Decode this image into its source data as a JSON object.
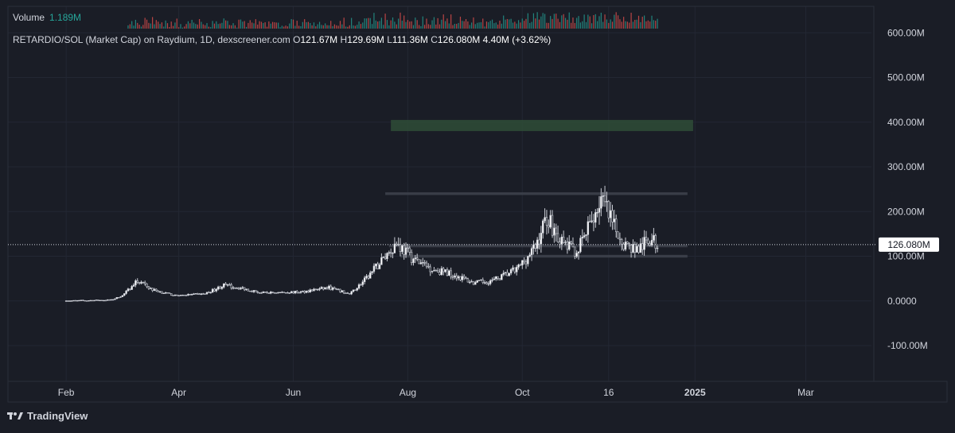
{
  "volume": {
    "label": "Volume",
    "value": "1.189M"
  },
  "legend": {
    "symbol": "RETARDIO/SOL (Market Cap) on Raydium, 1D, dexscreener.com",
    "open_k": "O",
    "open": "121.67M",
    "high_k": "H",
    "high": "129.69M",
    "low_k": "L",
    "low": "111.36M",
    "close_k": "C",
    "close": "126.080M",
    "change": "4.40M (+3.62%)"
  },
  "brand": "TradingView",
  "colors": {
    "background": "#1a1d26",
    "candle": "#d1d4dc",
    "zone_green": "#2e4a36",
    "vol_up": "#26a69a",
    "vol_down": "#ef5350"
  },
  "chart_data": {
    "type": "candlestick",
    "title": "RETARDIO/SOL (Market Cap) on Raydium, 1D, dexscreener.com",
    "y_unit": "Market Cap",
    "ylim": [
      -180,
      620
    ],
    "yticks": [
      -100,
      0,
      100,
      200,
      300,
      400,
      500,
      600
    ],
    "ytick_labels": [
      "-100.00M",
      "0.0000",
      "100.00M",
      "200.00M",
      "300.00M",
      "400.00M",
      "500.00M",
      "600.00M"
    ],
    "xlim": [
      "2024-01-01",
      "2025-04-05"
    ],
    "xticks": [
      {
        "date": "2024-02-01",
        "label": "Feb"
      },
      {
        "date": "2024-04-01",
        "label": "Apr"
      },
      {
        "date": "2024-06-01",
        "label": "Jun"
      },
      {
        "date": "2024-08-01",
        "label": "Aug"
      },
      {
        "date": "2024-10-01",
        "label": "Oct"
      },
      {
        "date": "2024-11-16",
        "label": "16"
      },
      {
        "date": "2025-01-01",
        "label": "2025"
      },
      {
        "date": "2025-03-01",
        "label": "Mar"
      }
    ],
    "last_price": 126.08,
    "last_price_label": "126.080M",
    "trend_points": [
      {
        "date": "2024-02-01",
        "value": 0
      },
      {
        "date": "2024-02-25",
        "value": 2
      },
      {
        "date": "2024-03-02",
        "value": 12
      },
      {
        "date": "2024-03-10",
        "value": 45
      },
      {
        "date": "2024-03-18",
        "value": 25
      },
      {
        "date": "2024-03-30",
        "value": 12
      },
      {
        "date": "2024-04-15",
        "value": 16
      },
      {
        "date": "2024-04-25",
        "value": 35
      },
      {
        "date": "2024-05-05",
        "value": 28
      },
      {
        "date": "2024-05-15",
        "value": 18
      },
      {
        "date": "2024-06-05",
        "value": 20
      },
      {
        "date": "2024-06-20",
        "value": 30
      },
      {
        "date": "2024-07-01",
        "value": 15
      },
      {
        "date": "2024-07-10",
        "value": 50
      },
      {
        "date": "2024-07-20",
        "value": 100
      },
      {
        "date": "2024-07-26",
        "value": 130
      },
      {
        "date": "2024-08-05",
        "value": 90
      },
      {
        "date": "2024-08-15",
        "value": 70
      },
      {
        "date": "2024-08-25",
        "value": 60
      },
      {
        "date": "2024-09-05",
        "value": 40
      },
      {
        "date": "2024-09-15",
        "value": 45
      },
      {
        "date": "2024-09-28",
        "value": 70
      },
      {
        "date": "2024-10-08",
        "value": 120
      },
      {
        "date": "2024-10-14",
        "value": 190
      },
      {
        "date": "2024-10-22",
        "value": 130
      },
      {
        "date": "2024-10-30",
        "value": 110
      },
      {
        "date": "2024-11-05",
        "value": 160
      },
      {
        "date": "2024-11-12",
        "value": 230
      },
      {
        "date": "2024-11-18",
        "value": 170
      },
      {
        "date": "2024-11-25",
        "value": 125
      },
      {
        "date": "2024-12-02",
        "value": 115
      },
      {
        "date": "2024-12-08",
        "value": 140
      },
      {
        "date": "2024-12-12",
        "value": 126
      }
    ],
    "zones": [
      {
        "name": "green-zone",
        "from": "2024-07-23",
        "to": "2024-12-31",
        "low": 380,
        "high": 405,
        "color": "#2e4a36"
      },
      {
        "name": "resistance-band",
        "from": "2024-07-20",
        "to": "2024-12-28",
        "low": 237,
        "high": 243,
        "color": "#3d414b"
      },
      {
        "name": "range-top-band",
        "from": "2024-07-22",
        "to": "2024-12-28",
        "low": 120,
        "high": 126,
        "color": "#3d414b"
      },
      {
        "name": "range-bottom-band",
        "from": "2024-07-28",
        "to": "2024-12-28",
        "low": 97,
        "high": 103,
        "color": "#3d414b"
      }
    ]
  }
}
